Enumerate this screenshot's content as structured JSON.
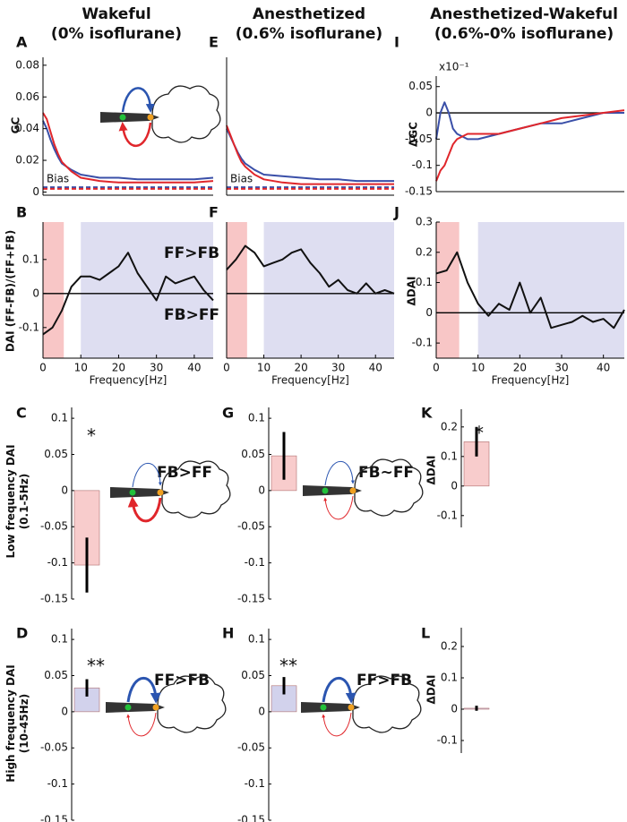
{
  "column_titles": [
    [
      "Wakeful",
      "(0% isoflurane)"
    ],
    [
      "Anesthetized",
      "(0.6% isoflurane)"
    ],
    [
      "Anesthetized-Wakeful",
      "(0.6%-0% isoflurane)"
    ]
  ],
  "chart_data": [
    {
      "type": "line",
      "panel": "A",
      "ylabel": [
        "GC"
      ],
      "annotations": [
        "Bias"
      ],
      "x": [
        0,
        1,
        2,
        3,
        4,
        5,
        7.5,
        10,
        15,
        20,
        25,
        30,
        35,
        40,
        45
      ],
      "xlim": [
        0,
        45
      ],
      "ylim": [
        -0.002,
        0.085
      ],
      "yticks": [
        0,
        0.02,
        0.04,
        0.06,
        0.08
      ],
      "series": [
        {
          "color": "#3a4fa8",
          "values": [
            0.045,
            0.04,
            0.033,
            0.027,
            0.022,
            0.018,
            0.014,
            0.011,
            0.009,
            0.009,
            0.008,
            0.008,
            0.008,
            0.008,
            0.009
          ]
        },
        {
          "color": "#e0262b",
          "values": [
            0.05,
            0.046,
            0.038,
            0.03,
            0.024,
            0.019,
            0.013,
            0.009,
            0.007,
            0.006,
            0.006,
            0.006,
            0.006,
            0.006,
            0.007
          ]
        },
        {
          "color": "#3a4fa8",
          "dash": true,
          "values": [
            0.003,
            0.003,
            0.003,
            0.003,
            0.003,
            0.003,
            0.003,
            0.003,
            0.003,
            0.003,
            0.003,
            0.003,
            0.003,
            0.003,
            0.003
          ]
        },
        {
          "color": "#e0262b",
          "dash": true,
          "values": [
            0.002,
            0.002,
            0.002,
            0.002,
            0.002,
            0.002,
            0.002,
            0.002,
            0.002,
            0.002,
            0.002,
            0.002,
            0.002,
            0.002,
            0.002
          ]
        }
      ]
    },
    {
      "type": "line",
      "panel": "B",
      "ylabel": [
        "DAI (FF-FB)/(FF+FB)"
      ],
      "xlabel": "Frequency[Hz]",
      "annotations": [
        "FF>FB",
        "FB>FF"
      ],
      "x": [
        0,
        2.5,
        5,
        7.5,
        10,
        12.5,
        15,
        17.5,
        20,
        22.5,
        25,
        27.5,
        30,
        32.5,
        35,
        37.5,
        40,
        42.5,
        45
      ],
      "xlim": [
        0,
        45
      ],
      "xticks": [
        0,
        10,
        20,
        30,
        40
      ],
      "ylim": [
        -0.19,
        0.21
      ],
      "yticks": [
        -0.1,
        0,
        0.1
      ],
      "zero_line": true,
      "bands": [
        {
          "range": [
            0,
            5.5
          ],
          "color": "#f6b8b8"
        },
        {
          "range": [
            10,
            45
          ],
          "color": "#d6d6ee"
        }
      ],
      "series": [
        {
          "color": "#111111",
          "values": [
            -0.12,
            -0.1,
            -0.05,
            0.02,
            0.05,
            0.05,
            0.04,
            0.06,
            0.08,
            0.12,
            0.06,
            0.02,
            -0.02,
            0.05,
            0.03,
            0.04,
            0.05,
            0.01,
            -0.02
          ]
        }
      ]
    },
    {
      "type": "bar",
      "panel": "C",
      "ylabel": [
        "Low frequency DAI",
        "(0.1-5Hz)"
      ],
      "annotations": [
        "*",
        "FB>FF"
      ],
      "values": [
        -0.103
      ],
      "errors": [
        0.038
      ],
      "color": "#f8cccc",
      "ylim": [
        -0.15,
        0.115
      ],
      "yticks": [
        -0.15,
        -0.1,
        -0.05,
        0,
        0.05,
        0.1
      ]
    },
    {
      "type": "bar",
      "panel": "D",
      "ylabel": [
        "High frequency DAI",
        "(10-45Hz)"
      ],
      "annotations": [
        "**",
        "FF>FB"
      ],
      "values": [
        0.033
      ],
      "errors": [
        0.012
      ],
      "color": "#d2d2ec",
      "ylim": [
        -0.15,
        0.115
      ],
      "yticks": [
        -0.15,
        -0.1,
        -0.05,
        0,
        0.05,
        0.1
      ]
    },
    {
      "type": "line",
      "panel": "E",
      "ylabel": [],
      "annotations": [
        "Bias"
      ],
      "x": [
        0,
        1,
        2,
        3,
        4,
        5,
        7.5,
        10,
        15,
        20,
        25,
        30,
        35,
        40,
        45
      ],
      "xlim": [
        0,
        45
      ],
      "ylim": [
        -0.002,
        0.085
      ],
      "series": [
        {
          "color": "#3a4fa8",
          "values": [
            0.04,
            0.035,
            0.03,
            0.025,
            0.021,
            0.018,
            0.014,
            0.011,
            0.01,
            0.009,
            0.008,
            0.008,
            0.007,
            0.007,
            0.007
          ]
        },
        {
          "color": "#e0262b",
          "values": [
            0.042,
            0.036,
            0.03,
            0.024,
            0.019,
            0.016,
            0.011,
            0.008,
            0.006,
            0.005,
            0.005,
            0.005,
            0.005,
            0.005,
            0.005
          ]
        },
        {
          "color": "#3a4fa8",
          "dash": true,
          "values": [
            0.003,
            0.003,
            0.003,
            0.003,
            0.003,
            0.003,
            0.003,
            0.003,
            0.003,
            0.003,
            0.003,
            0.003,
            0.003,
            0.003,
            0.003
          ]
        },
        {
          "color": "#e0262b",
          "dash": true,
          "values": [
            0.002,
            0.002,
            0.002,
            0.002,
            0.002,
            0.002,
            0.002,
            0.002,
            0.002,
            0.002,
            0.002,
            0.002,
            0.002,
            0.002,
            0.002
          ]
        }
      ]
    },
    {
      "type": "line",
      "panel": "F",
      "ylabel": [],
      "xlabel": "Frequency[Hz]",
      "annotations": [],
      "x": [
        0,
        2.5,
        5,
        7.5,
        10,
        12.5,
        15,
        17.5,
        20,
        22.5,
        25,
        27.5,
        30,
        32.5,
        35,
        37.5,
        40,
        42.5,
        45
      ],
      "xlim": [
        0,
        45
      ],
      "xticks": [
        0,
        10,
        20,
        30,
        40
      ],
      "ylim": [
        -0.19,
        0.21
      ],
      "zero_line": true,
      "bands": [
        {
          "range": [
            0,
            5.5
          ],
          "color": "#f6b8b8"
        },
        {
          "range": [
            10,
            45
          ],
          "color": "#d6d6ee"
        }
      ],
      "series": [
        {
          "color": "#111111",
          "values": [
            0.07,
            0.1,
            0.14,
            0.12,
            0.08,
            0.09,
            0.1,
            0.12,
            0.13,
            0.09,
            0.06,
            0.02,
            0.04,
            0.01,
            0,
            0.03,
            0,
            0.01,
            0
          ]
        }
      ]
    },
    {
      "type": "bar",
      "panel": "G",
      "ylabel": [],
      "annotations": [
        "FB~FF"
      ],
      "values": [
        0.048
      ],
      "errors": [
        0.033
      ],
      "color": "#f8cccc",
      "ylim": [
        -0.15,
        0.115
      ],
      "yticks": [
        -0.15,
        -0.1,
        -0.05,
        0,
        0.05,
        0.1
      ]
    },
    {
      "type": "bar",
      "panel": "H",
      "ylabel": [],
      "annotations": [
        "**",
        "FF>FB"
      ],
      "values": [
        0.036
      ],
      "errors": [
        0.012
      ],
      "color": "#d2d2ec",
      "ylim": [
        -0.15,
        0.115
      ],
      "yticks": [
        -0.15,
        -0.1,
        -0.05,
        0,
        0.05,
        0.1
      ]
    },
    {
      "type": "line",
      "panel": "I",
      "ylabel": [
        "ΔGC"
      ],
      "annotations": [
        "x10⁻¹"
      ],
      "x": [
        0,
        1,
        2,
        3,
        4,
        5,
        7.5,
        10,
        15,
        20,
        25,
        30,
        35,
        40,
        45
      ],
      "xlim": [
        0,
        45
      ],
      "ylim": [
        -0.15,
        0.07
      ],
      "yticks": [
        -0.15,
        -0.1,
        -0.05,
        0,
        0.05
      ],
      "zero_line": true,
      "series": [
        {
          "color": "#3a4fa8",
          "values": [
            -0.05,
            0,
            0.02,
            0,
            -0.03,
            -0.04,
            -0.05,
            -0.05,
            -0.04,
            -0.03,
            -0.02,
            -0.02,
            -0.01,
            0,
            0
          ]
        },
        {
          "color": "#e0262b",
          "values": [
            -0.13,
            -0.11,
            -0.1,
            -0.08,
            -0.06,
            -0.05,
            -0.04,
            -0.04,
            -0.04,
            -0.03,
            -0.02,
            -0.01,
            -0.005,
            0,
            0.005
          ]
        }
      ]
    },
    {
      "type": "line",
      "panel": "J",
      "ylabel": [
        "ΔDAI"
      ],
      "xlabel": "Frequency[Hz]",
      "annotations": [],
      "x": [
        0,
        2.5,
        5,
        7.5,
        10,
        12.5,
        15,
        17.5,
        20,
        22.5,
        25,
        27.5,
        30,
        32.5,
        35,
        37.5,
        40,
        42.5,
        45
      ],
      "xlim": [
        0,
        45
      ],
      "xticks": [
        0,
        10,
        20,
        30,
        40
      ],
      "ylim": [
        -0.15,
        0.3
      ],
      "yticks": [
        -0.1,
        0,
        0.1,
        0.2,
        0.3
      ],
      "zero_line": true,
      "bands": [
        {
          "range": [
            0,
            5.5
          ],
          "color": "#f6b8b8"
        },
        {
          "range": [
            10,
            45
          ],
          "color": "#d6d6ee"
        }
      ],
      "series": [
        {
          "color": "#111111",
          "values": [
            0.13,
            0.14,
            0.2,
            0.1,
            0.03,
            -0.01,
            0.03,
            0.01,
            0.1,
            0,
            0.05,
            -0.05,
            -0.04,
            -0.03,
            -0.01,
            -0.03,
            -0.02,
            -0.05,
            0.01
          ]
        }
      ]
    },
    {
      "type": "bar",
      "panel": "K",
      "ylabel": [
        "ΔDAI"
      ],
      "annotations": [
        "*"
      ],
      "values": [
        0.15
      ],
      "errors": [
        0.05
      ],
      "color": "#f8cccc",
      "ylim": [
        -0.14,
        0.26
      ],
      "yticks": [
        -0.1,
        0,
        0.1,
        0.2
      ]
    },
    {
      "type": "bar",
      "panel": "L",
      "ylabel": [
        "ΔDAI"
      ],
      "annotations": [],
      "values": [
        0.003
      ],
      "errors": [
        0.008
      ],
      "color": "#d2d2ec",
      "ylim": [
        -0.14,
        0.26
      ],
      "yticks": [
        -0.1,
        0,
        0.1,
        0.2
      ]
    }
  ]
}
